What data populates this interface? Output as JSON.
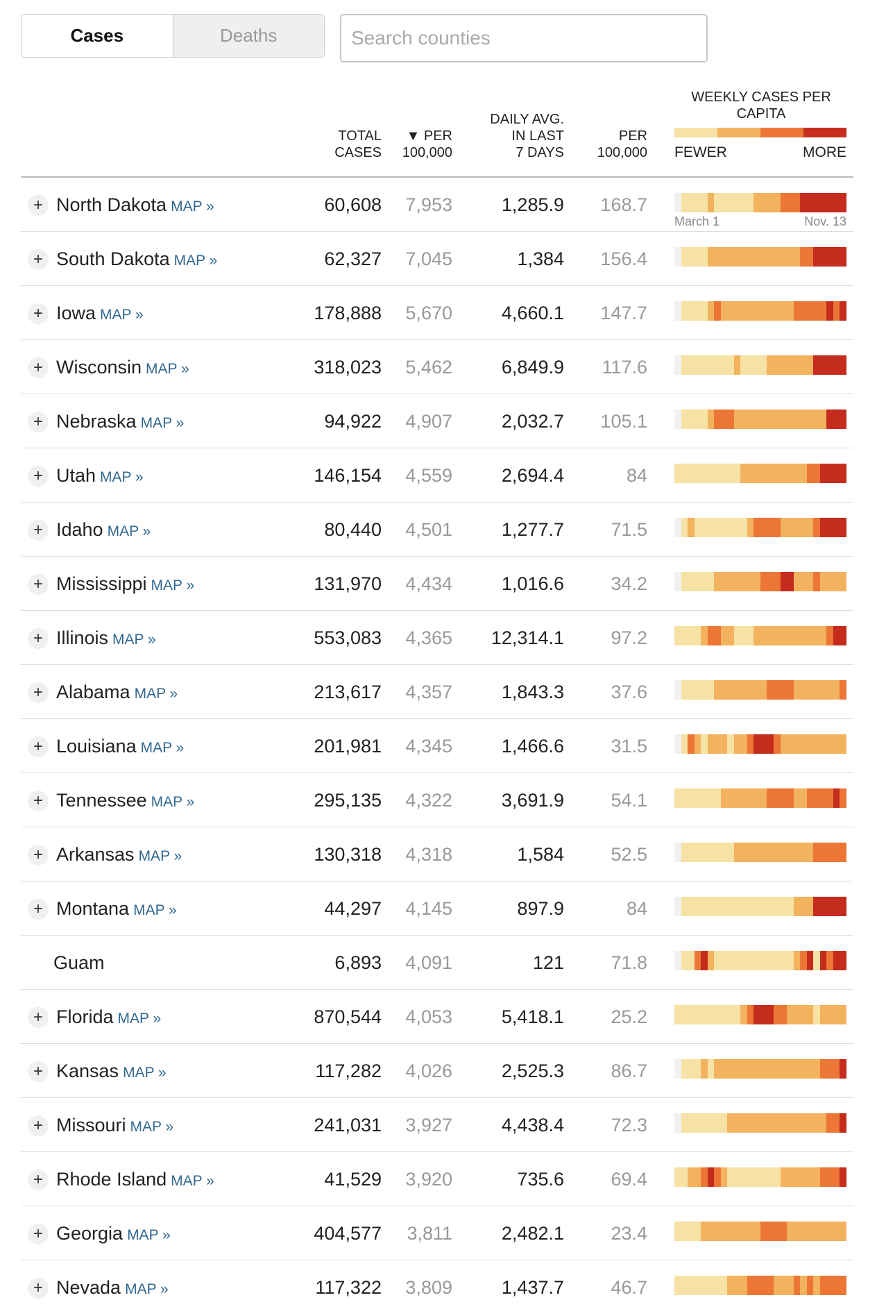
{
  "toggle": {
    "cases_label": "Cases",
    "deaths_label": "Deaths"
  },
  "search": {
    "placeholder": "Search counties"
  },
  "header": {
    "total_cases": [
      "TOTAL",
      "CASES"
    ],
    "per_100k": [
      "▼ PER",
      "100,000"
    ],
    "daily_avg": [
      "DAILY AVG.",
      "IN LAST",
      "7 DAYS"
    ],
    "daily_per": [
      "PER",
      "100,000"
    ],
    "legend_title": [
      "WEEKLY CASES PER",
      "CAPITA"
    ],
    "legend_fewer": "FEWER",
    "legend_more": "MORE",
    "first_date": "March 1",
    "last_date": "Nov. 13"
  },
  "colors": {
    "level0": "#f1f1f1",
    "level1": "#f5e2a4",
    "level2": "#f3b25d",
    "level3": "#ec7636",
    "level4": "#c42c1d",
    "map_link": "#326891"
  },
  "map_label": "MAP »",
  "rows": [
    {
      "name": "North Dakota",
      "has_map": true,
      "total": "60,608",
      "per100k": "7,953",
      "daily": "1,285.9",
      "daily_per": "168.7",
      "trend": "01111211111122223334444444"
    },
    {
      "name": "South Dakota",
      "has_map": true,
      "total": "62,327",
      "per100k": "7,045",
      "daily": "1,384",
      "daily_per": "156.4",
      "trend": "01111222222222222223344444"
    },
    {
      "name": "Iowa",
      "has_map": true,
      "total": "178,888",
      "per100k": "5,670",
      "daily": "4,660.1",
      "daily_per": "147.7",
      "trend": "01111232222222222233333434"
    },
    {
      "name": "Wisconsin",
      "has_map": true,
      "total": "318,023",
      "per100k": "5,462",
      "daily": "6,849.9",
      "daily_per": "117.6",
      "trend": "01111111121111222222244444"
    },
    {
      "name": "Nebraska",
      "has_map": true,
      "total": "94,922",
      "per100k": "4,907",
      "daily": "2,032.7",
      "daily_per": "105.1",
      "trend": "01111233322222222222222444"
    },
    {
      "name": "Utah",
      "has_map": true,
      "total": "146,154",
      "per100k": "4,559",
      "daily": "2,694.4",
      "daily_per": "84",
      "trend": "11111111112222222222334444"
    },
    {
      "name": "Idaho",
      "has_map": true,
      "total": "80,440",
      "per100k": "4,501",
      "daily": "1,277.7",
      "daily_per": "71.5",
      "trend": "01211111111233332222234444"
    },
    {
      "name": "Mississippi",
      "has_map": true,
      "total": "131,970",
      "per100k": "4,434",
      "daily": "1,016.6",
      "daily_per": "34.2",
      "trend": "01111122222223334422232222"
    },
    {
      "name": "Illinois",
      "has_map": true,
      "total": "553,083",
      "per100k": "4,365",
      "daily": "12,314.1",
      "daily_per": "97.2",
      "trend": "11112332211122222222222344"
    },
    {
      "name": "Alabama",
      "has_map": true,
      "total": "213,617",
      "per100k": "4,357",
      "daily": "1,843.3",
      "daily_per": "37.6",
      "trend": "01111122222222333322222223"
    },
    {
      "name": "Louisiana",
      "has_map": true,
      "total": "201,981",
      "per100k": "4,345",
      "daily": "1,466.6",
      "daily_per": "31.5",
      "trend": "01321222122344432222222222"
    },
    {
      "name": "Tennessee",
      "has_map": true,
      "total": "295,135",
      "per100k": "4,322",
      "daily": "3,691.9",
      "daily_per": "54.1",
      "trend": "11111112222222333322333343"
    },
    {
      "name": "Arkansas",
      "has_map": true,
      "total": "130,318",
      "per100k": "4,318",
      "daily": "1,584",
      "daily_per": "52.5",
      "trend": "01111111122222222222233333"
    },
    {
      "name": "Montana",
      "has_map": true,
      "total": "44,297",
      "per100k": "4,145",
      "daily": "897.9",
      "daily_per": "84",
      "trend": "01111111111111111122244444"
    },
    {
      "name": "Guam",
      "has_map": false,
      "total": "6,893",
      "per100k": "4,091",
      "daily": "121",
      "daily_per": "71.8",
      "trend": "01134211111111111123414344"
    },
    {
      "name": "Florida",
      "has_map": true,
      "total": "870,544",
      "per100k": "4,053",
      "daily": "5,418.1",
      "daily_per": "25.2",
      "trend": "11111111112344433222212222"
    },
    {
      "name": "Kansas",
      "has_map": true,
      "total": "117,282",
      "per100k": "4,026",
      "daily": "2,525.3",
      "daily_per": "86.7",
      "trend": "01112122222222222222223334"
    },
    {
      "name": "Missouri",
      "has_map": true,
      "total": "241,031",
      "per100k": "3,927",
      "daily": "4,438.4",
      "daily_per": "72.3",
      "trend": "01111111222222222222222334"
    },
    {
      "name": "Rhode Island",
      "has_map": true,
      "total": "41,529",
      "per100k": "3,920",
      "daily": "735.6",
      "daily_per": "69.4",
      "trend": "11223432111111112222223334"
    },
    {
      "name": "Georgia",
      "has_map": true,
      "total": "404,577",
      "per100k": "3,811",
      "daily": "2,482.1",
      "daily_per": "23.4",
      "trend": "11112222222223333222222222"
    },
    {
      "name": "Nevada",
      "has_map": true,
      "total": "117,322",
      "per100k": "3,809",
      "daily": "1,437.7",
      "daily_per": "46.7",
      "trend": "11111111222333322232323333"
    }
  ]
}
